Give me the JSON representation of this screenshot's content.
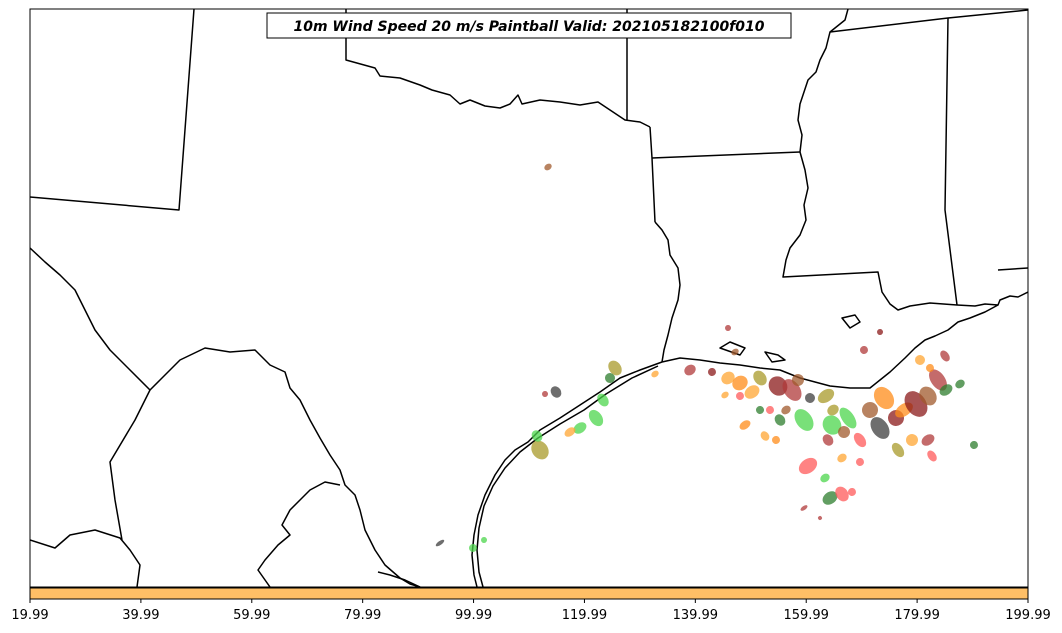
{
  "title": "10m Wind Speed 20 m/s Paintball Valid: 202105182100f010",
  "colorbar": {
    "fill_color": "#ffbf66",
    "ticks": [
      "19.99",
      "39.99",
      "59.99",
      "79.99",
      "99.99",
      "119.99",
      "139.99",
      "159.99",
      "179.99",
      "199.99"
    ]
  },
  "paint_colors": [
    "#ff5a5a",
    "#ffa533",
    "#4cd64c",
    "#8b1a1a",
    "#a05a2c",
    "#a89a2a",
    "#3d3d3d",
    "#2e7d2e",
    "#b03a3a",
    "#ff8c1a"
  ],
  "map": {
    "background": "#ffffff",
    "border_color": "#000000"
  }
}
